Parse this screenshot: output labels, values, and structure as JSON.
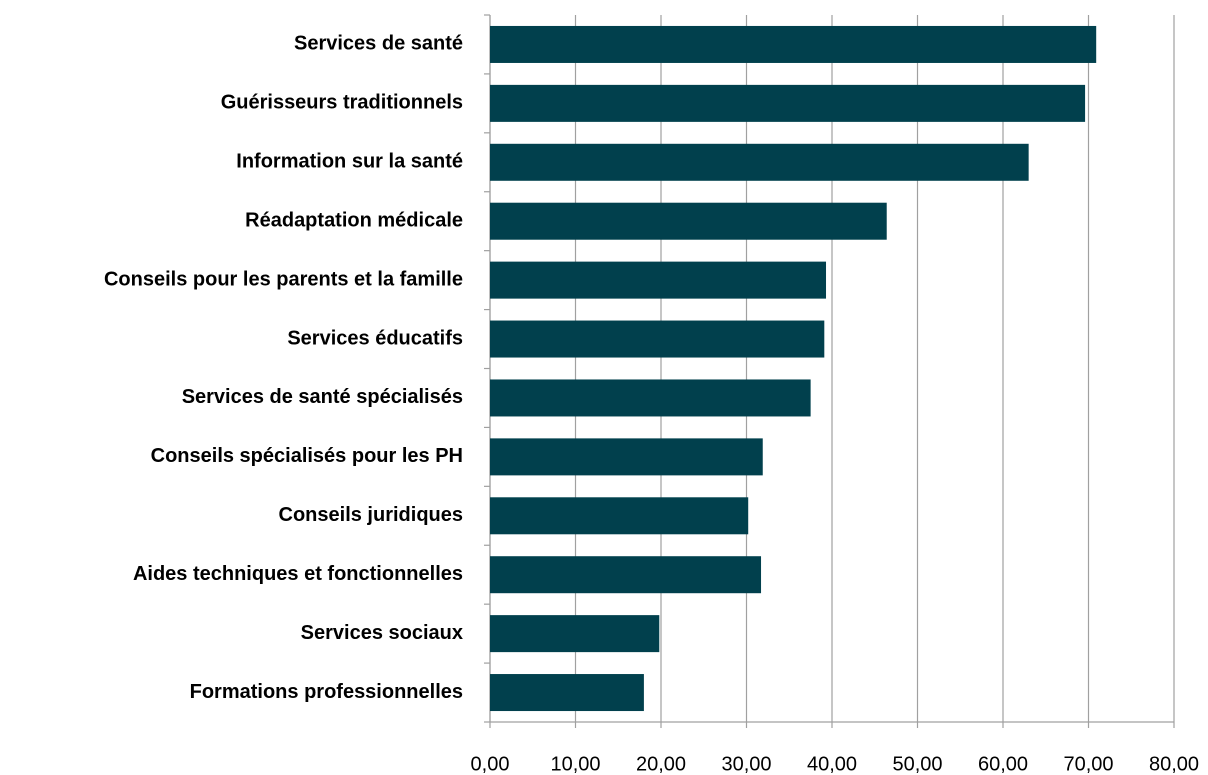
{
  "chart_data": {
    "type": "bar",
    "orientation": "horizontal",
    "categories": [
      "Services de santé",
      "Guérisseurs traditionnels",
      "Information sur la santé",
      "Réadaptation médicale",
      "Conseils pour les parents et la famille",
      "Services éducatifs",
      "Services de santé spécialisés",
      "Conseils spécialisés pour les PH",
      "Conseils juridiques",
      "Aides techniques et fonctionnelles",
      "Services sociaux",
      "Formations professionnelles"
    ],
    "values": [
      70.9,
      69.6,
      63.0,
      46.4,
      39.3,
      39.1,
      37.5,
      31.9,
      30.2,
      31.7,
      19.8,
      18.0
    ],
    "color": "#01404d",
    "xlim": [
      0,
      80
    ],
    "xticks": [
      {
        "value": 0,
        "label": "0,00"
      },
      {
        "value": 10,
        "label": "10,00"
      },
      {
        "value": 20,
        "label": "20,00"
      },
      {
        "value": 30,
        "label": "30,00"
      },
      {
        "value": 40,
        "label": "40,00"
      },
      {
        "value": 50,
        "label": "50,00"
      },
      {
        "value": 60,
        "label": "60,00"
      },
      {
        "value": 70,
        "label": "70,00"
      },
      {
        "value": 80,
        "label": "80,00"
      }
    ],
    "grid": true
  }
}
